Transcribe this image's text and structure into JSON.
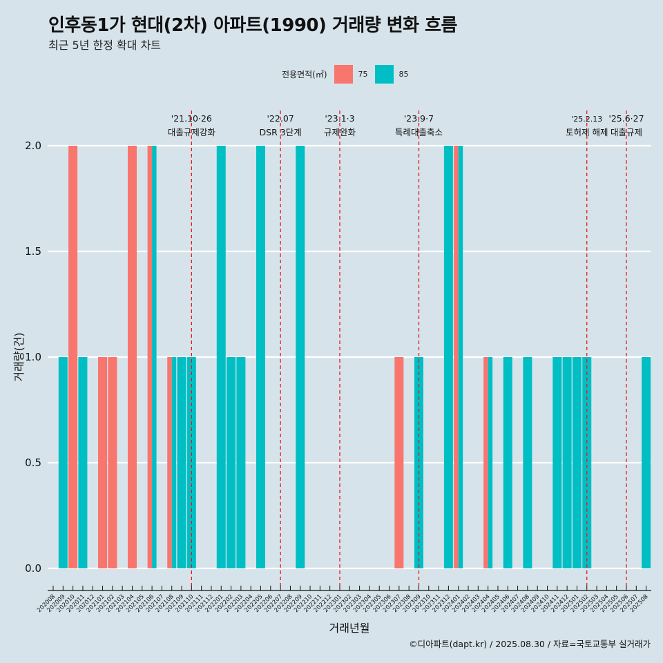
{
  "header": {
    "title": "인후동1가 현대(2차) 아파트(1990) 거래량 변화 흐름",
    "subtitle": "최근 5년 한정 확대 차트"
  },
  "legend": {
    "title": "전용면적(㎡)",
    "items": [
      {
        "label": "75",
        "color": "#f8766d"
      },
      {
        "label": "85",
        "color": "#00bfc4"
      }
    ]
  },
  "caption": "©디아파트(dapt.kr) / 2025.08.30 / 자료=국토교통부 실거래가",
  "chart_data": {
    "type": "bar",
    "title": "인후동1가 현대(2차) 아파트(1990) 거래량 변화 흐름",
    "subtitle": "최근 5년 한정 확대 차트",
    "xlabel": "거래년월",
    "ylabel": "거래량(건)",
    "ylim": [
      0,
      2
    ],
    "yticks": [
      0.0,
      0.5,
      1.0,
      1.5,
      2.0
    ],
    "ytick_labels": [
      "0.0",
      "0.5",
      "1.0",
      "1.5",
      "2.0"
    ],
    "grid": true,
    "legend_position": "top",
    "categories": [
      "202008",
      "202009",
      "202010",
      "202011",
      "202012",
      "202101",
      "202102",
      "202103",
      "202104",
      "202105",
      "202106",
      "202107",
      "202108",
      "202109",
      "202110",
      "202111",
      "202112",
      "202201",
      "202202",
      "202203",
      "202204",
      "202205",
      "202206",
      "202207",
      "202208",
      "202209",
      "202210",
      "202211",
      "202212",
      "202301",
      "202302",
      "202303",
      "202304",
      "202305",
      "202306",
      "202307",
      "202308",
      "202309",
      "202310",
      "202311",
      "202312",
      "202401",
      "202402",
      "202403",
      "202404",
      "202405",
      "202406",
      "202407",
      "202408",
      "202409",
      "202410",
      "202411",
      "202412",
      "202501",
      "202502",
      "202503",
      "202504",
      "202505",
      "202506",
      "202507",
      "202508"
    ],
    "series": [
      {
        "name": "75",
        "color": "#f8766d",
        "points": [
          {
            "x": "202010",
            "y": 2
          },
          {
            "x": "202101",
            "y": 1
          },
          {
            "x": "202102",
            "y": 1
          },
          {
            "x": "202104",
            "y": 2
          },
          {
            "x": "202106",
            "y": 2
          },
          {
            "x": "202108",
            "y": 1
          },
          {
            "x": "202307",
            "y": 1
          },
          {
            "x": "202401",
            "y": 2
          },
          {
            "x": "202404",
            "y": 1
          }
        ]
      },
      {
        "name": "85",
        "color": "#00bfc4",
        "points": [
          {
            "x": "202009",
            "y": 1
          },
          {
            "x": "202011",
            "y": 1
          },
          {
            "x": "202106",
            "y": 2
          },
          {
            "x": "202108",
            "y": 1
          },
          {
            "x": "202109",
            "y": 1
          },
          {
            "x": "202110",
            "y": 1
          },
          {
            "x": "202201",
            "y": 2
          },
          {
            "x": "202202",
            "y": 1
          },
          {
            "x": "202203",
            "y": 1
          },
          {
            "x": "202205",
            "y": 2
          },
          {
            "x": "202209",
            "y": 2
          },
          {
            "x": "202309",
            "y": 1
          },
          {
            "x": "202312",
            "y": 2
          },
          {
            "x": "202401",
            "y": 2
          },
          {
            "x": "202404",
            "y": 1
          },
          {
            "x": "202406",
            "y": 1
          },
          {
            "x": "202408",
            "y": 1
          },
          {
            "x": "202411",
            "y": 1
          },
          {
            "x": "202412",
            "y": 1
          },
          {
            "x": "202501",
            "y": 1
          },
          {
            "x": "202502",
            "y": 1
          },
          {
            "x": "202508",
            "y": 1
          }
        ]
      }
    ],
    "annotations": [
      {
        "x": "202110",
        "date": "'21.10·26",
        "label": "대출규제강화"
      },
      {
        "x": "202207",
        "date": "'22.07",
        "label": "DSR 3단계"
      },
      {
        "x": "202301",
        "date": "'23.1·3",
        "label": "규제완화"
      },
      {
        "x": "202309",
        "date": "'23.9·7",
        "label": "특례대출축소"
      },
      {
        "x": "202502",
        "date": "'25.2.13",
        "label": "토허제 해제"
      },
      {
        "x": "202506",
        "date": "'25.6·27",
        "label": "대출규제"
      }
    ],
    "annotation_line_color": "#e41a1c"
  }
}
